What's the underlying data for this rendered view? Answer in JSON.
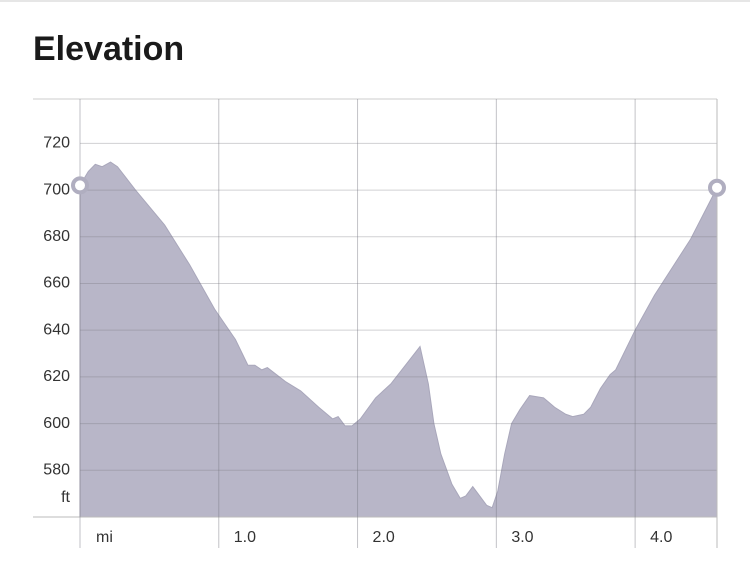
{
  "chart_data": {
    "type": "area",
    "title": "Elevation",
    "x_label": "mi",
    "y_label": "ft",
    "color": "#b8b6c8",
    "grid": true,
    "x": [
      0,
      0.06,
      0.11,
      0.16,
      0.22,
      0.27,
      0.4,
      0.61,
      0.79,
      0.97,
      1.12,
      1.21,
      1.26,
      1.31,
      1.35,
      1.48,
      1.59,
      1.72,
      1.82,
      1.86,
      1.91,
      1.96,
      2.02,
      2.13,
      2.24,
      2.45,
      2.51,
      2.55,
      2.6,
      2.68,
      2.74,
      2.78,
      2.83,
      2.88,
      2.93,
      2.97,
      3.01,
      3.06,
      3.11,
      3.17,
      3.24,
      3.34,
      3.42,
      3.5,
      3.55,
      3.63,
      3.68,
      3.75,
      3.82,
      3.86,
      4.0,
      4.14,
      4.4,
      4.59
    ],
    "values": [
      702,
      708,
      711,
      710,
      712,
      710,
      700,
      685,
      668,
      649,
      636,
      625,
      625,
      623,
      624,
      618,
      614,
      607,
      602,
      603,
      599,
      599,
      602,
      611,
      617,
      633,
      617,
      600,
      587,
      574,
      568,
      569,
      573,
      569,
      565,
      564,
      571,
      587,
      600,
      606,
      612,
      611,
      607,
      604,
      603,
      604,
      607,
      615,
      621,
      623,
      640,
      655,
      679,
      701
    ],
    "xlim": [
      0,
      4.59
    ],
    "ylim": [
      560,
      739
    ],
    "xticks": [
      0,
      {
        "value": 1,
        "label": "1.0"
      },
      {
        "value": 2,
        "label": "2.0"
      },
      {
        "value": 3,
        "label": "3.0"
      },
      {
        "value": 4,
        "label": "4.0"
      }
    ],
    "yticks": [
      580,
      600,
      620,
      640,
      660,
      680,
      700,
      720
    ]
  }
}
